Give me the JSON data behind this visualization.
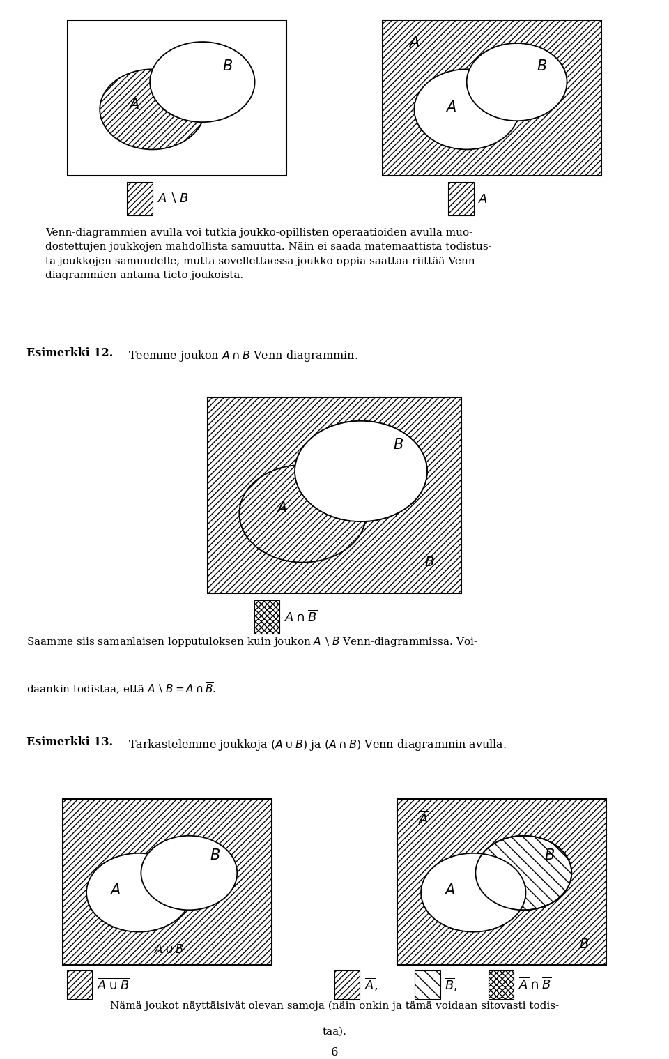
{
  "bg_color": "#ffffff",
  "text_color": "#000000",
  "line_color": "#000000",
  "body_text1": "Venn-diagrammien avulla voi tutkia joukko-opillisten operaatioiden avulla muo-\ndostettujen joukkojen mahdollista samuutta. Näin ei saada matemaattista todistus-\nta joukkojen samuudelle, mutta sovellettaessa joukko-oppia saattaa riittää Venn-\ndiagrammien antama tieto joukoista.",
  "esim12_head": "Esimerkki 12.",
  "esim12_body": "Teemme joukon $A \\cap \\overline{B}$ Venn-diagrammin.",
  "saamme_text1": "Saamme siis samanlaisen lopputuloksen kuin joukon $A \\setminus B$ Venn-diagrammissa. Voi-",
  "saamme_text2": "daankin todistaa, että $A \\setminus B = A \\cap \\overline{B}$.",
  "esim13_head": "Esimerkki 13.",
  "esim13_body": "Tarkastelemme joukkoja $\\overline{(A \\cup B)}$ ja $(\\overline{A}\\cap\\overline{B})$ Venn-diagrammin avulla.",
  "namajoukot": "Nämä joukot näyttäisivät olevan samoja (näin onkin ja tämä voidaan sitovasti todis-",
  "namajoukot2": "taa).",
  "page_num": "6"
}
